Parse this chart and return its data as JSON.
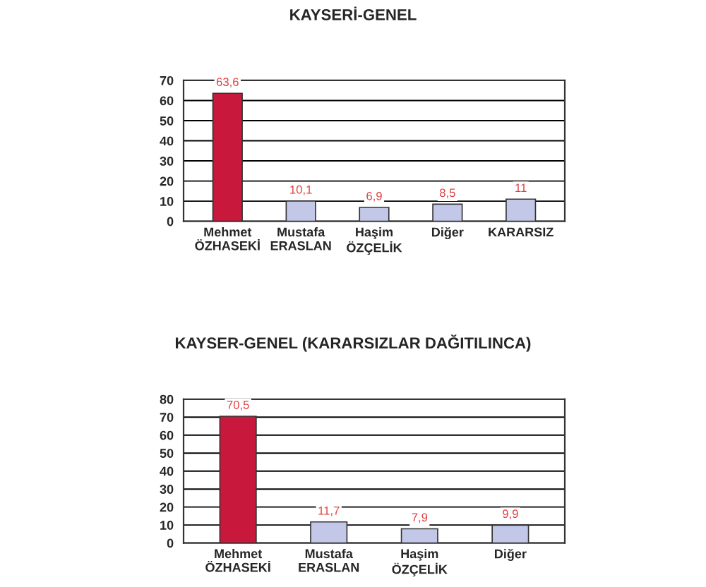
{
  "chart_data": [
    {
      "type": "bar",
      "title": "KAYSERİ-GENEL",
      "categories": [
        "Mehmet\nÖZHASEKİ",
        "Mustafa\nERASLAN",
        "Haşim\nÖZÇELİK",
        "Diğer",
        "KARARSIZ"
      ],
      "values": [
        63.6,
        10.1,
        6.9,
        8.5,
        11
      ],
      "value_labels": [
        "63,6",
        "10,1",
        "6,9",
        "8,5",
        "11"
      ],
      "colors": [
        "#c8193c",
        "#c4c8e8",
        "#c4c8e8",
        "#c4c8e8",
        "#c4c8e8"
      ],
      "ylim": [
        0,
        70
      ],
      "yticks": [
        0,
        10,
        20,
        30,
        40,
        50,
        60,
        70
      ],
      "grid": "y"
    },
    {
      "type": "bar",
      "title": "KAYSER-GENEL (KARARSIZLAR DAĞITILINCA)",
      "categories": [
        "Mehmet\nÖZHASEKİ",
        "Mustafa\nERASLAN",
        "Haşim\nÖZÇELİK",
        "Diğer"
      ],
      "values": [
        70.5,
        11.7,
        7.9,
        9.9
      ],
      "value_labels": [
        "70,5",
        "11,7",
        "7,9",
        "9,9"
      ],
      "colors": [
        "#c8193c",
        "#c4c8e8",
        "#c4c8e8",
        "#c4c8e8"
      ],
      "ylim": [
        0,
        80
      ],
      "yticks": [
        0,
        10,
        20,
        30,
        40,
        50,
        60,
        70,
        80
      ],
      "grid": "y"
    }
  ]
}
